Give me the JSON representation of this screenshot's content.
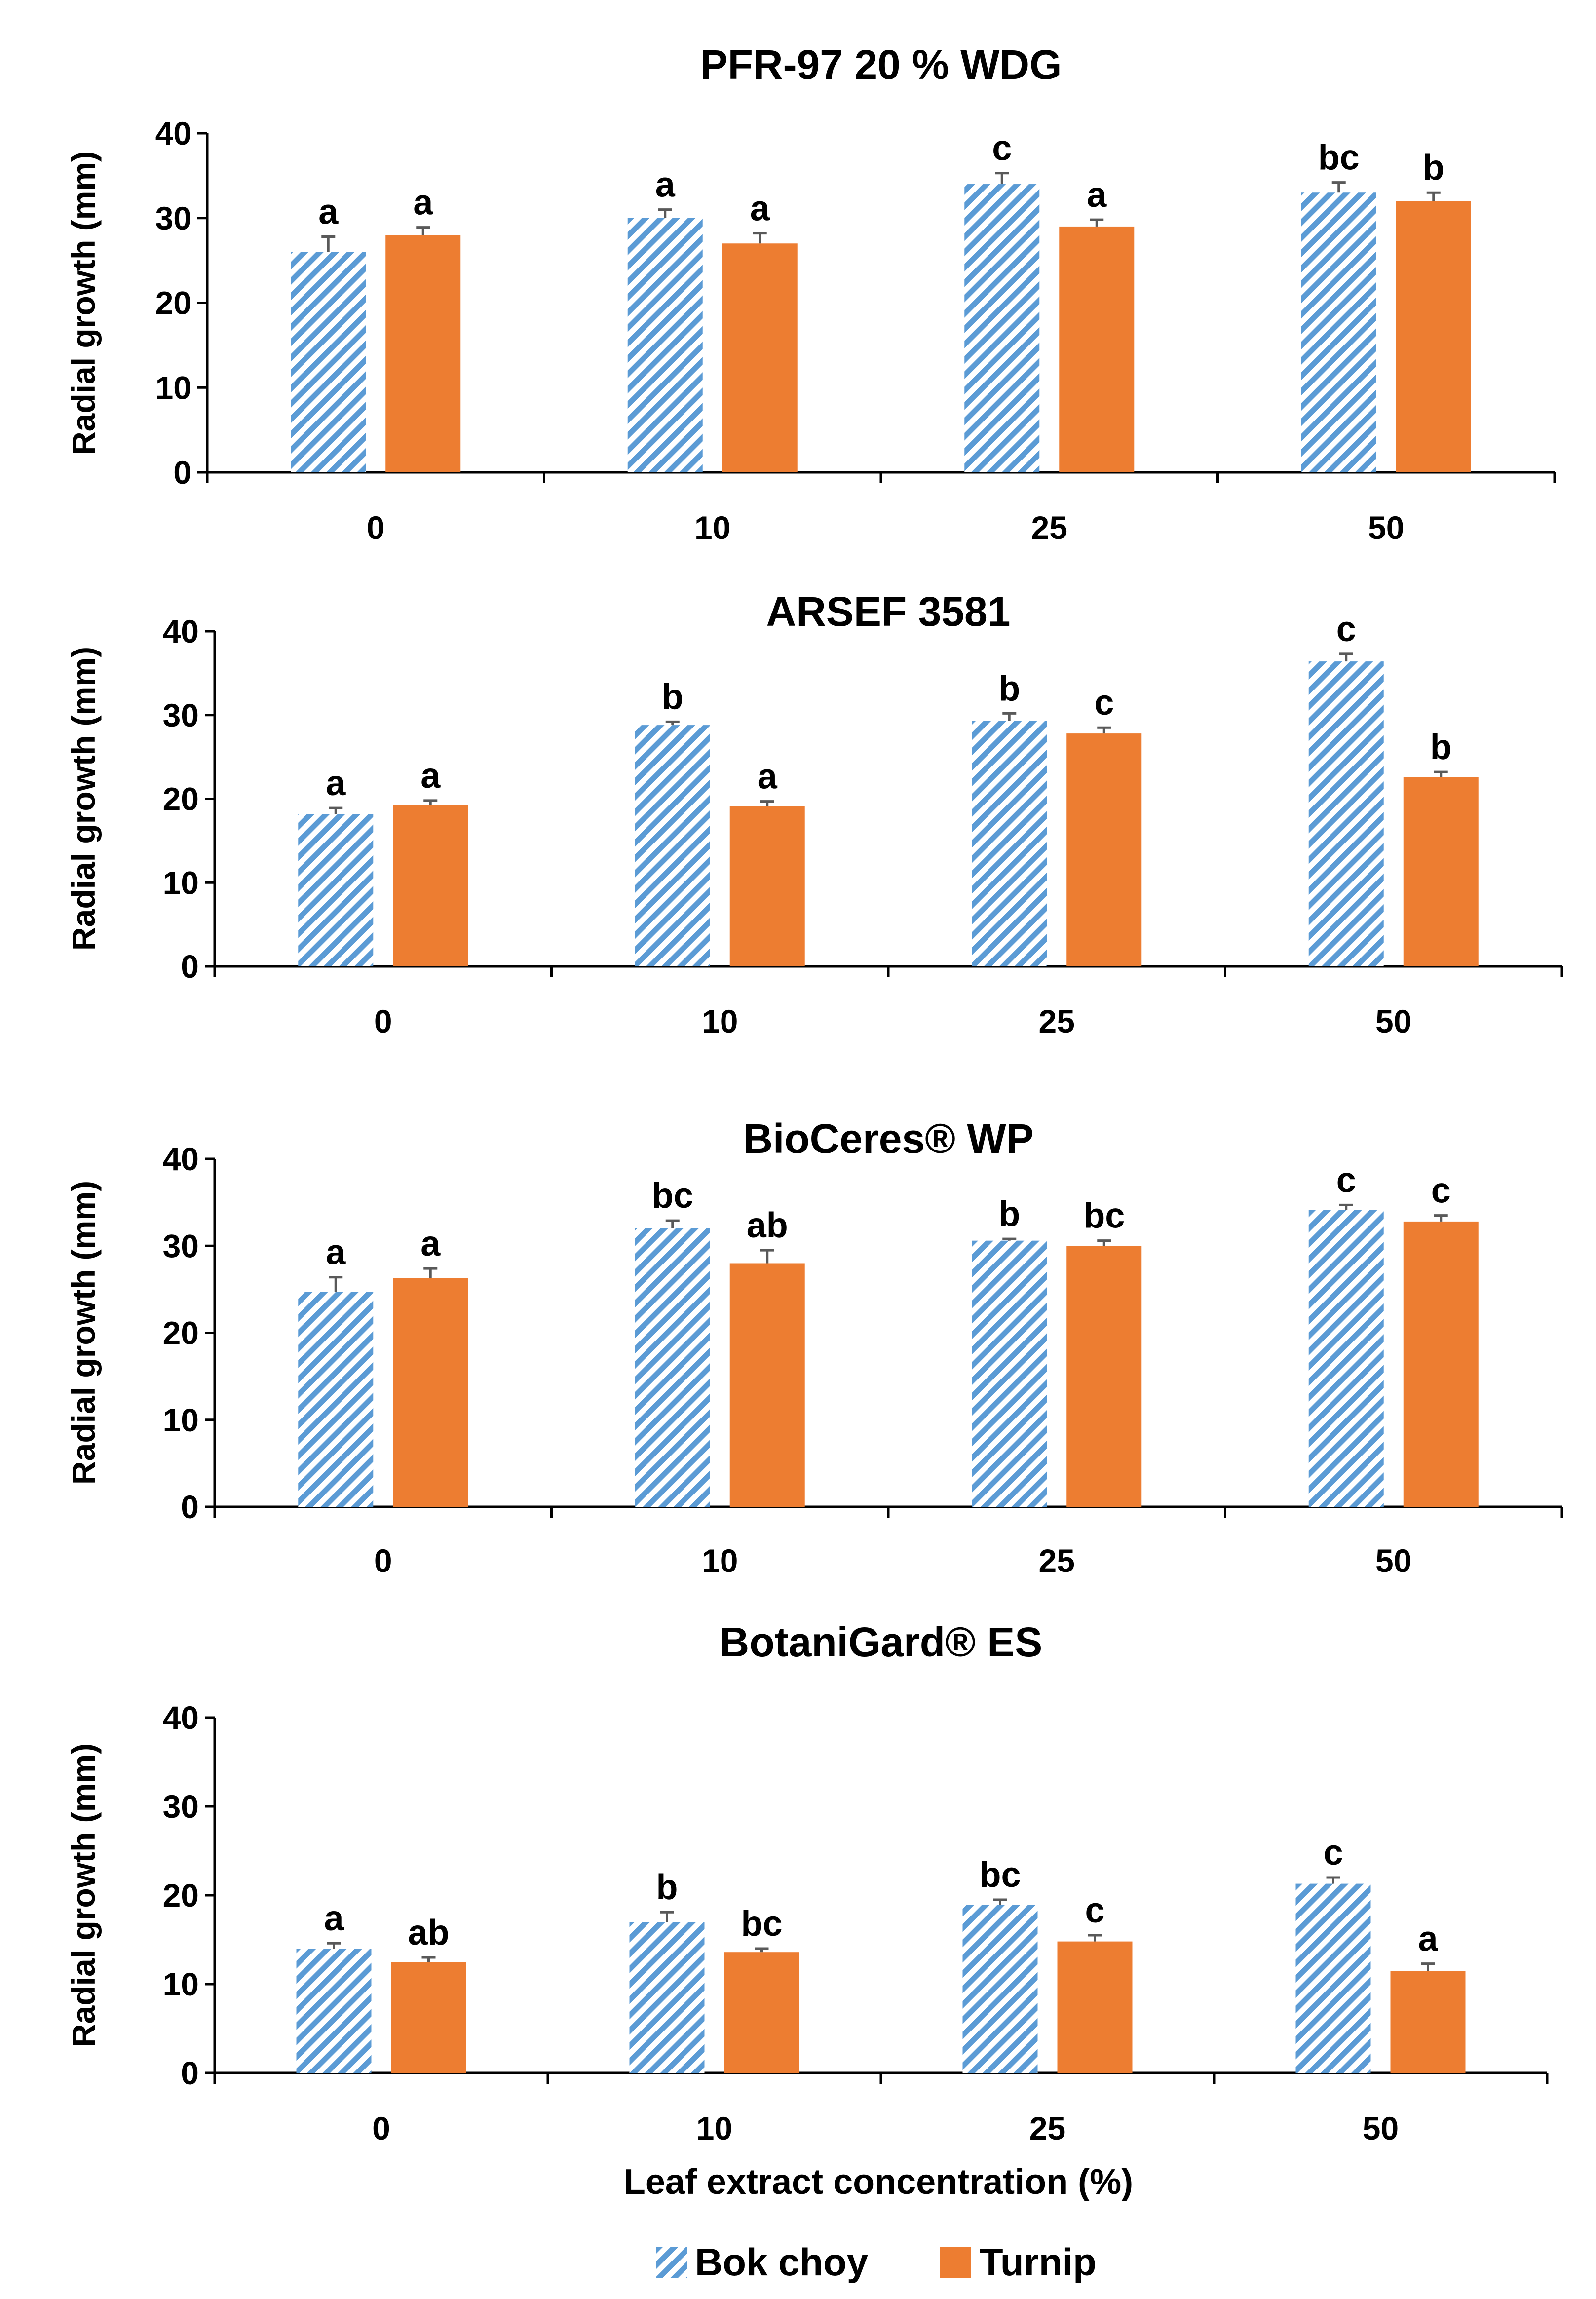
{
  "chart_data": [
    {
      "type": "bar",
      "title": "PFR-97 20 % WDG",
      "categories": [
        "0",
        "10",
        "25",
        "50"
      ],
      "ylabel": "Radial growth (mm)",
      "yticks": [
        "0",
        "10",
        "20",
        "30",
        "40"
      ],
      "ylim": [
        0,
        40
      ],
      "series": [
        {
          "name": "Bok choy",
          "values": [
            26,
            30,
            34,
            33
          ],
          "errors": [
            1.8,
            1.0,
            1.3,
            1.2
          ],
          "letters": [
            "a",
            "a",
            "c",
            "bc"
          ]
        },
        {
          "name": "Turnip",
          "values": [
            28,
            27,
            29,
            32
          ],
          "errors": [
            0.9,
            1.2,
            0.8,
            1.0
          ],
          "letters": [
            "a",
            "a",
            "a",
            "b"
          ]
        }
      ]
    },
    {
      "type": "bar",
      "title": "ARSEF 3581",
      "categories": [
        "0",
        "10",
        "25",
        "50"
      ],
      "ylabel": "Radial growth (mm)",
      "yticks": [
        "0",
        "10",
        "20",
        "30",
        "40"
      ],
      "ylim": [
        0,
        40
      ],
      "series": [
        {
          "name": "Bok choy",
          "values": [
            18.2,
            28.8,
            29.3,
            36.4
          ],
          "errors": [
            0.7,
            0.4,
            0.9,
            0.9
          ],
          "letters": [
            "a",
            "b",
            "b",
            "c"
          ]
        },
        {
          "name": "Turnip",
          "values": [
            19.3,
            19.1,
            27.8,
            22.6
          ],
          "errors": [
            0.5,
            0.6,
            0.7,
            0.6
          ],
          "letters": [
            "a",
            "a",
            "c",
            "b"
          ]
        }
      ]
    },
    {
      "type": "bar",
      "title": "BioCeres® WP",
      "categories": [
        "0",
        "10",
        "25",
        "50"
      ],
      "ylabel": "Radial growth (mm)",
      "yticks": [
        "0",
        "10",
        "20",
        "30",
        "40"
      ],
      "ylim": [
        0,
        40
      ],
      "series": [
        {
          "name": "Bok choy",
          "values": [
            24.7,
            32,
            30.6,
            34.1
          ],
          "errors": [
            1.7,
            0.9,
            0.2,
            0.6
          ],
          "letters": [
            "a",
            "bc",
            "b",
            "c"
          ]
        },
        {
          "name": "Turnip",
          "values": [
            26.3,
            28,
            30,
            32.8
          ],
          "errors": [
            1.1,
            1.5,
            0.6,
            0.7
          ],
          "letters": [
            "a",
            "ab",
            "bc",
            "c"
          ]
        }
      ]
    },
    {
      "type": "bar",
      "title": "BotaniGard® ES",
      "categories": [
        "0",
        "10",
        "25",
        "50"
      ],
      "ylabel": "Radial growth (mm)",
      "yticks": [
        "0",
        "10",
        "20",
        "30",
        "40"
      ],
      "ylim": [
        0,
        40
      ],
      "series": [
        {
          "name": "Bok choy",
          "values": [
            14,
            17,
            18.9,
            21.3
          ],
          "errors": [
            0.6,
            1.1,
            0.6,
            0.7
          ],
          "letters": [
            "a",
            "b",
            "bc",
            "c"
          ]
        },
        {
          "name": "Turnip",
          "values": [
            12.5,
            13.6,
            14.8,
            11.5
          ],
          "errors": [
            0.5,
            0.4,
            0.7,
            0.8
          ],
          "letters": [
            "ab",
            "bc",
            "c",
            "a"
          ]
        }
      ]
    }
  ],
  "xlabel": "Leaf extract concentration (%)",
  "legend": [
    {
      "name": "Bok choy",
      "style": "hatched",
      "color": "#5b9bd5"
    },
    {
      "name": "Turnip",
      "style": "solid",
      "color": "#ed7d31"
    }
  ],
  "colors": {
    "bok_choy": "#5b9bd5",
    "turnip": "#ed7d31",
    "error_bar": "#595959",
    "axis": "#000000"
  }
}
